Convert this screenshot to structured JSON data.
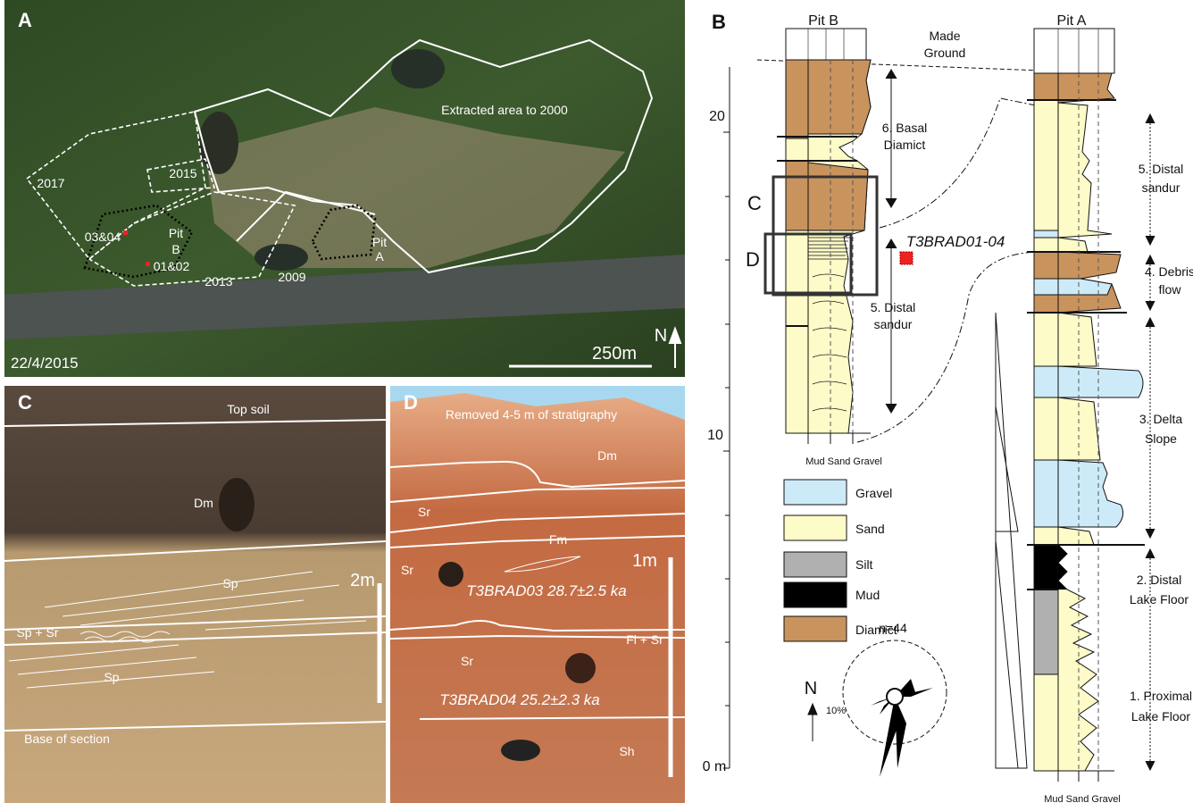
{
  "panel_a": {
    "letter": "A",
    "extracted": "Extracted area to 2000",
    "areas": [
      "2017",
      "2015",
      "2013",
      "2009"
    ],
    "samples": [
      "03&04",
      "01&02"
    ],
    "pit_b": [
      "Pit",
      "B"
    ],
    "pit_a": [
      "Pit",
      "A"
    ],
    "date": "22/4/2015",
    "scale": "250m",
    "north": "N"
  },
  "panel_c": {
    "letter": "C",
    "top": "Top soil",
    "units": [
      "Dm",
      "Sp",
      "Sp + Sr",
      "Sp"
    ],
    "scale": "2m",
    "base": "Base of section"
  },
  "panel_d": {
    "letter": "D",
    "removed": "Removed 4-5 m of stratigraphy",
    "units": [
      "Dm",
      "Sr",
      "Fm",
      "Sr",
      "Fl + Sr",
      "Sr",
      "Sh"
    ],
    "scale": "1m",
    "samples": [
      "T3BRAD03 28.7±2.5 ka",
      "T3BRAD04 25.2±2.3 ka"
    ]
  },
  "panel_b": {
    "letter": "B",
    "made_ground": [
      "Made",
      "Ground"
    ],
    "depths": [
      "20",
      "10",
      "0 m"
    ],
    "pit_b": {
      "title": "Pit B",
      "grain": "Mud Sand Gravel",
      "units": [
        [
          "6. Basal",
          "Diamict"
        ],
        [
          "5. Distal",
          "sandur"
        ]
      ]
    },
    "boxes": [
      "C",
      "D"
    ],
    "sample": "T3BRAD01-04",
    "legend": [
      "Gravel",
      "Sand",
      "Silt",
      "Mud",
      "Diamict"
    ],
    "rose": {
      "n": "n=44",
      "north": "N",
      "scale": "10%"
    },
    "pit_a": {
      "title": "Pit A",
      "grain": "Mud Sand Gravel",
      "units": [
        [
          "5. Distal",
          "sandur"
        ],
        [
          "4. Debris",
          "flow"
        ],
        [
          "3. Delta",
          "Slope"
        ],
        [
          "2. Distal",
          "Lake Floor"
        ],
        [
          "1. Proximal",
          "Lake Floor"
        ]
      ]
    }
  }
}
